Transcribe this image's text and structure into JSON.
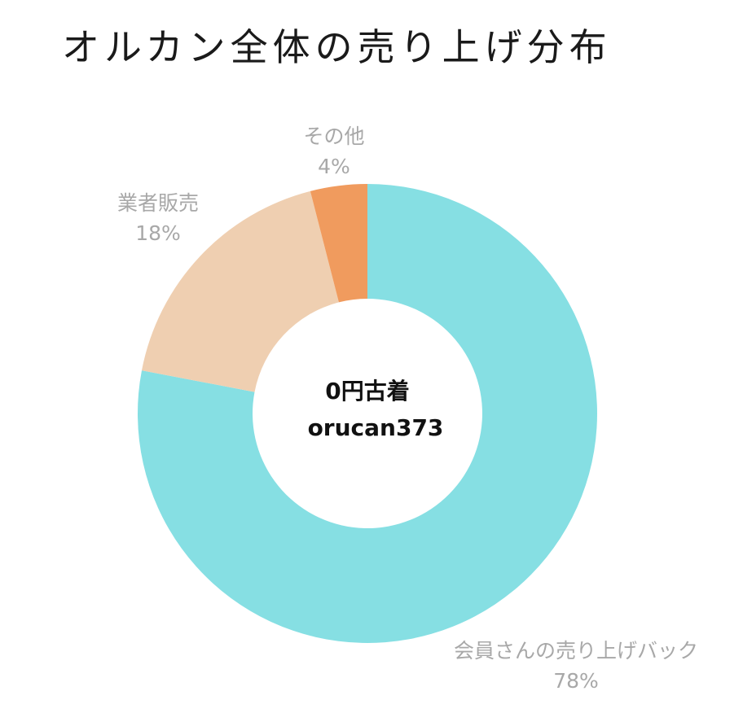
{
  "chart_data": {
    "type": "pie",
    "variant": "donut",
    "title": "オルカン全体の売り上げ分布",
    "start_angle": "top",
    "direction": "clockwise",
    "slices": [
      {
        "label": "会員さんの売り上げバック",
        "value": 78,
        "value_label": "78%",
        "color": "#86dfe3"
      },
      {
        "label": "業者販売",
        "value": 18,
        "value_label": "18%",
        "color": "#efcfb1"
      },
      {
        "label": "その他",
        "value": 4,
        "value_label": "4%",
        "color": "#f09b5e"
      }
    ],
    "center_text": [
      "0円古着",
      "orucan373"
    ]
  }
}
